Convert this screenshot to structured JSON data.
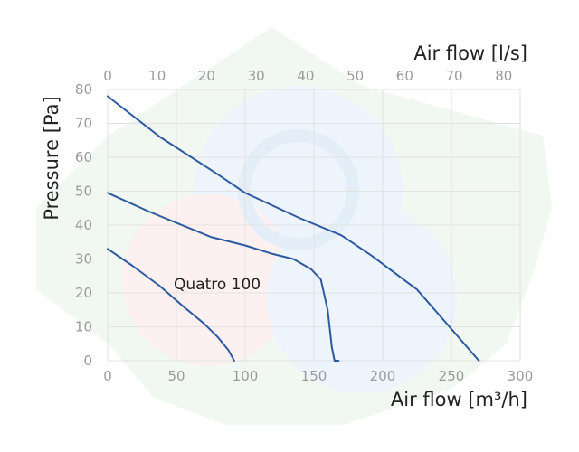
{
  "chart_data": {
    "type": "line",
    "xlabel": "Air flow [m³/h]",
    "ylabel": "Pressure [Pa]",
    "x2label": "Air flow [l/s]",
    "xlim": [
      0,
      300
    ],
    "ylim": [
      0,
      80
    ],
    "x2lim": [
      0,
      83.33
    ],
    "x_ticks": [
      0,
      50,
      100,
      150,
      200,
      250,
      300
    ],
    "y_ticks": [
      0,
      10,
      20,
      30,
      40,
      50,
      60,
      70,
      80
    ],
    "x2_ticks": [
      0,
      10,
      20,
      30,
      40,
      50,
      60,
      70,
      80
    ],
    "grid": true,
    "annotation": "Quatro 100",
    "series": [
      {
        "x": [
          0,
          18,
          38,
          55,
          70,
          80,
          88,
          92
        ],
        "y": [
          33,
          28,
          22,
          16,
          11,
          7,
          3,
          0
        ],
        "color": "#2c5aa0"
      },
      {
        "x": [
          0,
          30,
          75,
          100,
          120,
          135,
          148,
          155,
          160,
          163,
          165,
          168
        ],
        "y": [
          49.5,
          44,
          36.5,
          34,
          31.5,
          30,
          27,
          24,
          15,
          4,
          0,
          0
        ],
        "color": "#2c5aa0"
      },
      {
        "x": [
          0,
          38,
          80,
          100,
          140,
          170,
          192,
          225,
          270
        ],
        "y": [
          78,
          66,
          55,
          49.5,
          42,
          37,
          31,
          21,
          0
        ],
        "color": "#2c5aa0"
      }
    ]
  }
}
